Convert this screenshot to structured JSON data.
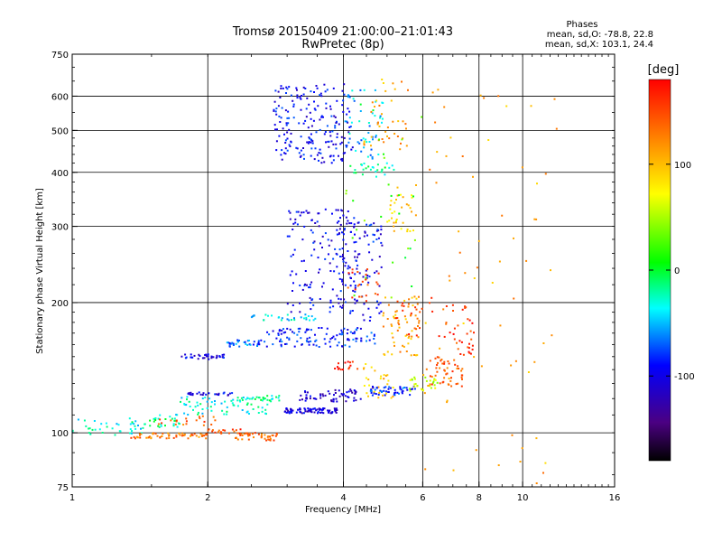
{
  "chart_data": {
    "type": "scatter",
    "title": "Tromsø 20150409 21:00:00–21:01:43",
    "subtitle": "RwPretec (8p)",
    "xlabel": "Frequency [MHz]",
    "ylabel": "Stationary phase Virtual Height [km]",
    "x_scale": "log",
    "y_scale": "log",
    "xlim": [
      1,
      16
    ],
    "ylim": [
      75,
      750
    ],
    "x_ticks": [
      1,
      2,
      4,
      6,
      8,
      10,
      16
    ],
    "x_tick_labels": [
      "1",
      "2",
      "4",
      "6",
      "8",
      "10",
      "16"
    ],
    "y_ticks": [
      75,
      100,
      200,
      300,
      400,
      500,
      600,
      750
    ],
    "y_tick_labels": [
      "75",
      "100",
      "200",
      "300",
      "400",
      "500",
      "600",
      "750"
    ],
    "grid": true,
    "stats": {
      "heading": "Phases",
      "line_o": "mean, sd,O: -78.8, 22.8",
      "line_x": "mean, sd,X: 103.1, 24.4"
    },
    "colorbar": {
      "label": "[deg]",
      "range": [
        -180,
        180
      ],
      "ticks": [
        100,
        0,
        -100
      ],
      "tick_labels": [
        "100",
        "0",
        "-100"
      ]
    },
    "traces": [
      {
        "x_range": [
          1.0,
          1.45
        ],
        "y_range": [
          98,
          108
        ],
        "phase": -30,
        "n": 40
      },
      {
        "x_range": [
          1.45,
          1.8
        ],
        "y_range": [
          103,
          110
        ],
        "phase": -20,
        "n": 25
      },
      {
        "x_range": [
          1.35,
          2.0
        ],
        "y_range": [
          97,
          100
        ],
        "phase": 130,
        "n": 60
      },
      {
        "x_range": [
          1.55,
          2.1
        ],
        "y_range": [
          104,
          110
        ],
        "phase": 140,
        "n": 20
      },
      {
        "x_range": [
          2.0,
          2.4
        ],
        "y_range": [
          99,
          102
        ],
        "phase": 150,
        "n": 20
      },
      {
        "x_range": [
          2.3,
          2.85
        ],
        "y_range": [
          96,
          100
        ],
        "phase": 135,
        "n": 40
      },
      {
        "x_range": [
          1.7,
          2.8
        ],
        "y_range": [
          110,
          122
        ],
        "phase": -30,
        "n": 70
      },
      {
        "x_range": [
          1.8,
          2.3
        ],
        "y_range": [
          122,
          124
        ],
        "phase": -100,
        "n": 25
      },
      {
        "x_range": [
          2.3,
          2.9
        ],
        "y_range": [
          118,
          122
        ],
        "phase": -20,
        "n": 25
      },
      {
        "x_range": [
          1.75,
          2.2
        ],
        "y_range": [
          148,
          152
        ],
        "phase": -100,
        "n": 35
      },
      {
        "x_range": [
          2.2,
          2.7
        ],
        "y_range": [
          158,
          164
        ],
        "phase": -70,
        "n": 35
      },
      {
        "x_range": [
          2.5,
          3.5
        ],
        "y_range": [
          182,
          188
        ],
        "phase": -40,
        "n": 30
      },
      {
        "x_range": [
          2.7,
          4.7
        ],
        "y_range": [
          158,
          175
        ],
        "phase": -85,
        "n": 110
      },
      {
        "x_range": [
          2.95,
          3.9
        ],
        "y_range": [
          111,
          114
        ],
        "phase": -105,
        "n": 80
      },
      {
        "x_range": [
          3.2,
          4.4
        ],
        "y_range": [
          118,
          126
        ],
        "phase": -110,
        "n": 60
      },
      {
        "x_range": [
          3.0,
          4.3
        ],
        "y_range": [
          190,
          330
        ],
        "phase": -100,
        "n": 150
      },
      {
        "x_range": [
          3.9,
          4.9
        ],
        "y_range": [
          180,
          310
        ],
        "phase": -95,
        "n": 90
      },
      {
        "x_range": [
          4.0,
          4.8
        ],
        "y_range": [
          200,
          240
        ],
        "phase": 150,
        "n": 25
      },
      {
        "x_range": [
          2.8,
          4.2
        ],
        "y_range": [
          420,
          640
        ],
        "phase": -95,
        "n": 200
      },
      {
        "x_range": [
          4.0,
          4.9
        ],
        "y_range": [
          430,
          620
        ],
        "phase": -50,
        "n": 50
      },
      {
        "x_range": [
          4.2,
          5.2
        ],
        "y_range": [
          390,
          420
        ],
        "phase": -20,
        "n": 25
      },
      {
        "x_range": [
          4.4,
          5.6
        ],
        "y_range": [
          450,
          660
        ],
        "phase": 110,
        "n": 40
      },
      {
        "x_range": [
          4.4,
          5.2
        ],
        "y_range": [
          118,
          145
        ],
        "phase": 100,
        "n": 30
      },
      {
        "x_range": [
          3.8,
          4.3
        ],
        "y_range": [
          140,
          146
        ],
        "phase": 170,
        "n": 15
      },
      {
        "x_range": [
          4.9,
          5.9
        ],
        "y_range": [
          150,
          210
        ],
        "phase": 110,
        "n": 60
      },
      {
        "x_range": [
          5.0,
          5.8
        ],
        "y_range": [
          290,
          380
        ],
        "phase": 90,
        "n": 35
      },
      {
        "x_range": [
          4.6,
          5.8
        ],
        "y_range": [
          122,
          128
        ],
        "phase": -80,
        "n": 50
      },
      {
        "x_range": [
          5.6,
          6.5
        ],
        "y_range": [
          125,
          135
        ],
        "phase": 60,
        "n": 30
      },
      {
        "x_range": [
          6.2,
          7.4
        ],
        "y_range": [
          128,
          150
        ],
        "phase": 140,
        "n": 50
      },
      {
        "x_range": [
          7.0,
          7.8
        ],
        "y_range": [
          150,
          200
        ],
        "phase": 160,
        "n": 30
      },
      {
        "x_range": [
          5.2,
          6.9
        ],
        "y_range": [
          165,
          210
        ],
        "phase": 150,
        "n": 30
      },
      {
        "x_range": [
          6.0,
          12.0
        ],
        "y_range": [
          75,
          650
        ],
        "phase": 110,
        "n": 70
      },
      {
        "x_range": [
          4.0,
          6.0
        ],
        "y_range": [
          200,
          600
        ],
        "phase": 20,
        "n": 30
      }
    ]
  }
}
